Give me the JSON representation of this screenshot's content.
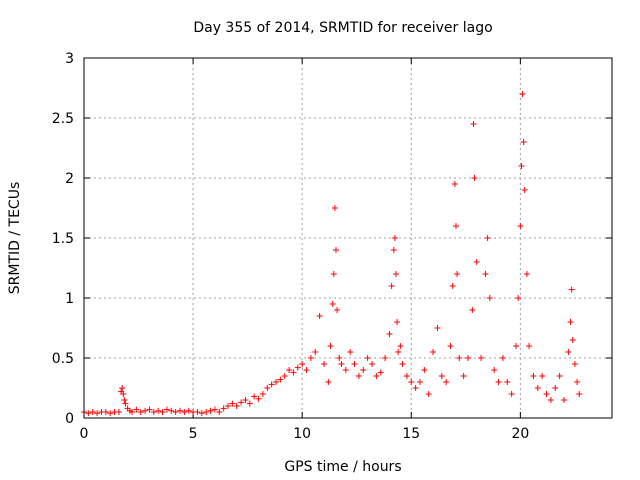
{
  "chart_data": {
    "type": "scatter",
    "title": "Day 355 of 2014, SRMTID for receiver lago",
    "xlabel": "GPS time / hours",
    "ylabel": "SRMTID / TECUs",
    "xlim": [
      0,
      24.2
    ],
    "ylim": [
      0,
      3
    ],
    "xticks": [
      0,
      5,
      10,
      15,
      20
    ],
    "xtick_labels": [
      "0",
      "5",
      "10",
      "15",
      "20"
    ],
    "yticks": [
      0,
      0.5,
      1,
      1.5,
      2,
      2.5,
      3
    ],
    "ytick_labels": [
      "0",
      "0.5",
      "1",
      "1.5",
      "2",
      "2.5",
      "3"
    ],
    "grid": true,
    "marker": "+",
    "color": "#ff0000",
    "series": [
      {
        "name": "SRMTID",
        "x": [
          0.0,
          0.2,
          0.4,
          0.6,
          0.8,
          1.0,
          1.2,
          1.4,
          1.6,
          1.7,
          1.75,
          1.8,
          1.85,
          1.9,
          2.0,
          2.1,
          2.2,
          2.4,
          2.6,
          2.8,
          3.0,
          3.2,
          3.4,
          3.6,
          3.8,
          4.0,
          4.2,
          4.4,
          4.6,
          4.8,
          5.0,
          5.2,
          5.4,
          5.6,
          5.8,
          6.0,
          6.2,
          6.4,
          6.6,
          6.8,
          7.0,
          7.2,
          7.4,
          7.6,
          7.8,
          8.0,
          8.2,
          8.4,
          8.6,
          8.8,
          9.0,
          9.2,
          9.4,
          9.6,
          9.8,
          10.0,
          10.2,
          10.4,
          10.6,
          10.8,
          11.0,
          11.2,
          11.3,
          11.4,
          11.45,
          11.5,
          11.55,
          11.6,
          11.7,
          11.8,
          12.0,
          12.2,
          12.4,
          12.6,
          12.8,
          13.0,
          13.2,
          13.4,
          13.6,
          13.8,
          14.0,
          14.1,
          14.2,
          14.25,
          14.3,
          14.35,
          14.4,
          14.5,
          14.6,
          14.8,
          15.0,
          15.2,
          15.4,
          15.6,
          15.8,
          16.0,
          16.2,
          16.4,
          16.6,
          16.8,
          16.9,
          17.0,
          17.05,
          17.1,
          17.2,
          17.4,
          17.6,
          17.8,
          17.85,
          17.9,
          18.0,
          18.2,
          18.4,
          18.5,
          18.6,
          18.8,
          19.0,
          19.2,
          19.4,
          19.6,
          19.8,
          19.9,
          20.0,
          20.05,
          20.1,
          20.15,
          20.2,
          20.3,
          20.4,
          20.6,
          20.8,
          21.0,
          21.2,
          21.4,
          21.6,
          21.8,
          22.0,
          22.2,
          22.3,
          22.35,
          22.4,
          22.5,
          22.6,
          22.7
        ],
        "y": [
          0.05,
          0.04,
          0.05,
          0.04,
          0.05,
          0.05,
          0.04,
          0.05,
          0.05,
          0.22,
          0.25,
          0.2,
          0.15,
          0.12,
          0.08,
          0.06,
          0.05,
          0.07,
          0.05,
          0.06,
          0.07,
          0.05,
          0.06,
          0.05,
          0.07,
          0.06,
          0.05,
          0.06,
          0.05,
          0.06,
          0.05,
          0.05,
          0.04,
          0.05,
          0.06,
          0.07,
          0.05,
          0.08,
          0.1,
          0.12,
          0.1,
          0.13,
          0.15,
          0.12,
          0.18,
          0.16,
          0.2,
          0.25,
          0.28,
          0.3,
          0.32,
          0.35,
          0.4,
          0.38,
          0.42,
          0.45,
          0.4,
          0.5,
          0.55,
          0.85,
          0.45,
          0.3,
          0.6,
          0.95,
          1.2,
          1.75,
          1.4,
          0.9,
          0.5,
          0.45,
          0.4,
          0.55,
          0.45,
          0.35,
          0.4,
          0.5,
          0.45,
          0.35,
          0.38,
          0.5,
          0.7,
          1.1,
          1.4,
          1.5,
          1.2,
          0.8,
          0.55,
          0.6,
          0.45,
          0.35,
          0.3,
          0.25,
          0.3,
          0.4,
          0.2,
          0.55,
          0.75,
          0.35,
          0.3,
          0.6,
          1.1,
          1.95,
          1.6,
          1.2,
          0.5,
          0.35,
          0.5,
          0.9,
          2.45,
          2.0,
          1.3,
          0.5,
          1.2,
          1.5,
          1.0,
          0.4,
          0.3,
          0.5,
          0.3,
          0.2,
          0.6,
          1.0,
          1.6,
          2.1,
          2.7,
          2.3,
          1.9,
          1.2,
          0.6,
          0.35,
          0.25,
          0.35,
          0.2,
          0.15,
          0.25,
          0.35,
          0.15,
          0.55,
          0.8,
          1.07,
          0.65,
          0.45,
          0.3,
          0.2
        ]
      }
    ]
  }
}
